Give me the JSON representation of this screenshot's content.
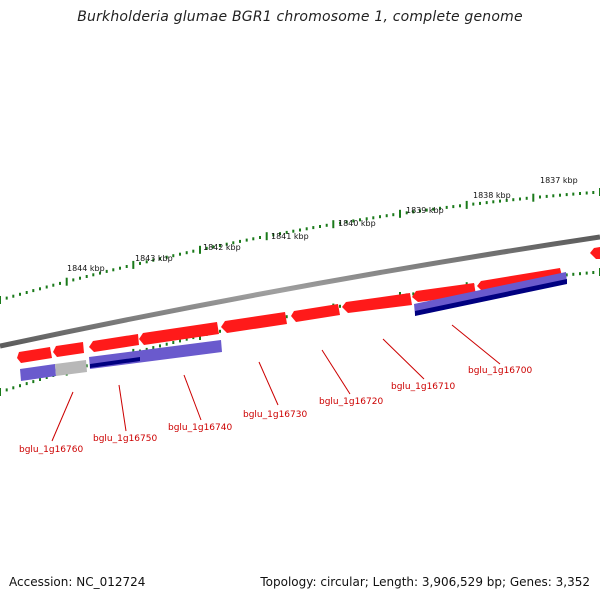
{
  "title": "Burkholderia glumae BGR1 chromosome 1, complete genome",
  "footer": {
    "accession": "Accession: NC_012724",
    "topology": "Topology: circular; Length: 3,906,529 bp; Genes: 3,352"
  },
  "ticks": [
    "1837 kbp",
    "1838 kbp",
    "1839 kbp",
    "1840 kbp",
    "1841 kbp",
    "1842 kbp",
    "1843 kbp",
    "1844 kbp"
  ],
  "genes": [
    "bglu_1g16700",
    "bglu_1g16710",
    "bglu_1g16720",
    "bglu_1g16730",
    "bglu_1g16740",
    "bglu_1g16750",
    "bglu_1g16760"
  ],
  "colors": {
    "backbone": "#808080",
    "cds": "#ff0000",
    "feature": "#6a5acd",
    "feature_dark": "#000080",
    "feature_gray": "#b8b8b8",
    "tick": "#1a7a1a",
    "label": "#cc0000"
  }
}
